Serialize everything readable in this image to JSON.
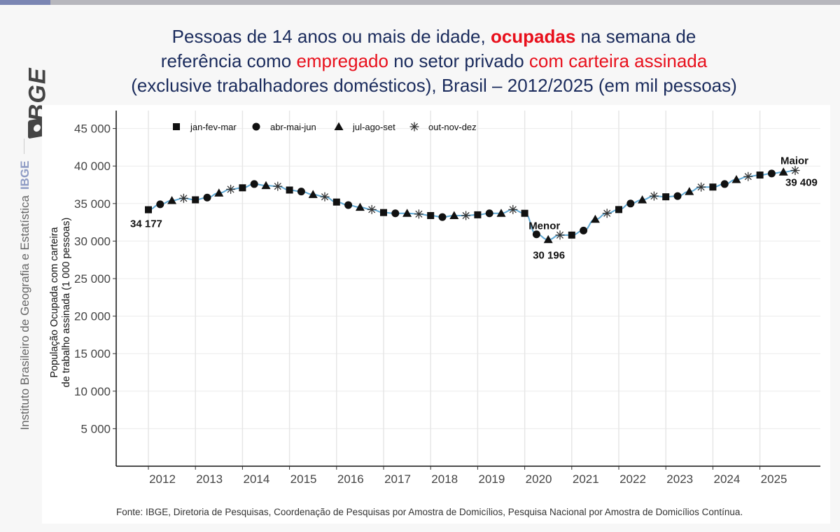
{
  "header": {
    "title_parts": [
      {
        "text": "Pessoas de 14 anos ou mais de idade, ",
        "style": "normal"
      },
      {
        "text": "ocupadas",
        "style": "red-bold"
      },
      {
        "text": " na semana de",
        "style": "normal"
      },
      {
        "text": "referência como ",
        "style": "normal",
        "newline": true
      },
      {
        "text": "empregado",
        "style": "red"
      },
      {
        "text": " no setor privado ",
        "style": "normal"
      },
      {
        "text": "com carteira assinada",
        "style": "red"
      },
      {
        "text": "(exclusive trabalhadores domésticos), Brasil – 2012/2025 (em mil pessoas)",
        "style": "normal",
        "newline": true
      }
    ]
  },
  "sidebar": {
    "logo": "IBGE",
    "institute": "Instituto Brasileiro de Geografia e Estatística",
    "institute_short": "IBGE"
  },
  "footer": {
    "source": "Fonte: IBGE, Diretoria de Pesquisas, Coordenação de Pesquisas por Amostra de Domicílios, Pesquisa Nacional por Amostra de Domicílios Contínua."
  },
  "colors": {
    "title": "#1a2b5c",
    "highlight": "#e8101c",
    "line": "#5fa8d3",
    "marker": "#111111"
  },
  "chart_data": {
    "type": "line",
    "title": "Pessoas de 14 anos ou mais de idade, ocupadas na semana de referência como empregado no setor privado com carteira assinada (exclusive trabalhadores domésticos), Brasil – 2012/2025 (em mil pessoas)",
    "xlabel": "",
    "ylabel_lines": [
      "População Ocupada com carteira",
      "de trabalho assinada (1 000 pessoas)"
    ],
    "ylim": [
      0,
      47000
    ],
    "yticks": [
      5000,
      10000,
      15000,
      20000,
      25000,
      30000,
      35000,
      40000,
      45000
    ],
    "ytick_labels": [
      "5 000",
      "10 000",
      "15 000",
      "20 000",
      "25 000",
      "30 000",
      "35 000",
      "40 000",
      "45 000"
    ],
    "xticks": [
      "2012",
      "2013",
      "2014",
      "2015",
      "2016",
      "2017",
      "2018",
      "2019",
      "2020",
      "2021",
      "2022",
      "2023",
      "2024",
      "2025"
    ],
    "grid": true,
    "legend_position": "top-left",
    "legend": [
      {
        "label": "jan-fev-mar",
        "marker": "square"
      },
      {
        "label": "abr-mai-jun",
        "marker": "circle"
      },
      {
        "label": "jul-ago-set",
        "marker": "triangle"
      },
      {
        "label": "out-nov-dez",
        "marker": "asterisk"
      }
    ],
    "quarter_markers": [
      "square",
      "circle",
      "triangle",
      "asterisk"
    ],
    "start_year": 2012,
    "values": [
      34177,
      34900,
      35400,
      35700,
      35500,
      35800,
      36400,
      36900,
      37100,
      37600,
      37400,
      37300,
      36800,
      36600,
      36200,
      35900,
      35200,
      34800,
      34500,
      34200,
      33800,
      33700,
      33700,
      33600,
      33400,
      33200,
      33400,
      33400,
      33500,
      33700,
      33700,
      34200,
      33700,
      30900,
      30196,
      30800,
      30800,
      31400,
      32900,
      33700,
      34200,
      35000,
      35500,
      36000,
      35900,
      36000,
      36600,
      37200,
      37200,
      37600,
      38200,
      38600,
      38800,
      39000,
      39200,
      39409
    ],
    "annotations": [
      {
        "index": 0,
        "text": "34 177",
        "position": "below"
      },
      {
        "index": 34,
        "label": "Menor",
        "text": "30 196"
      },
      {
        "index": 55,
        "label": "Maior",
        "text": "39 409"
      }
    ]
  }
}
